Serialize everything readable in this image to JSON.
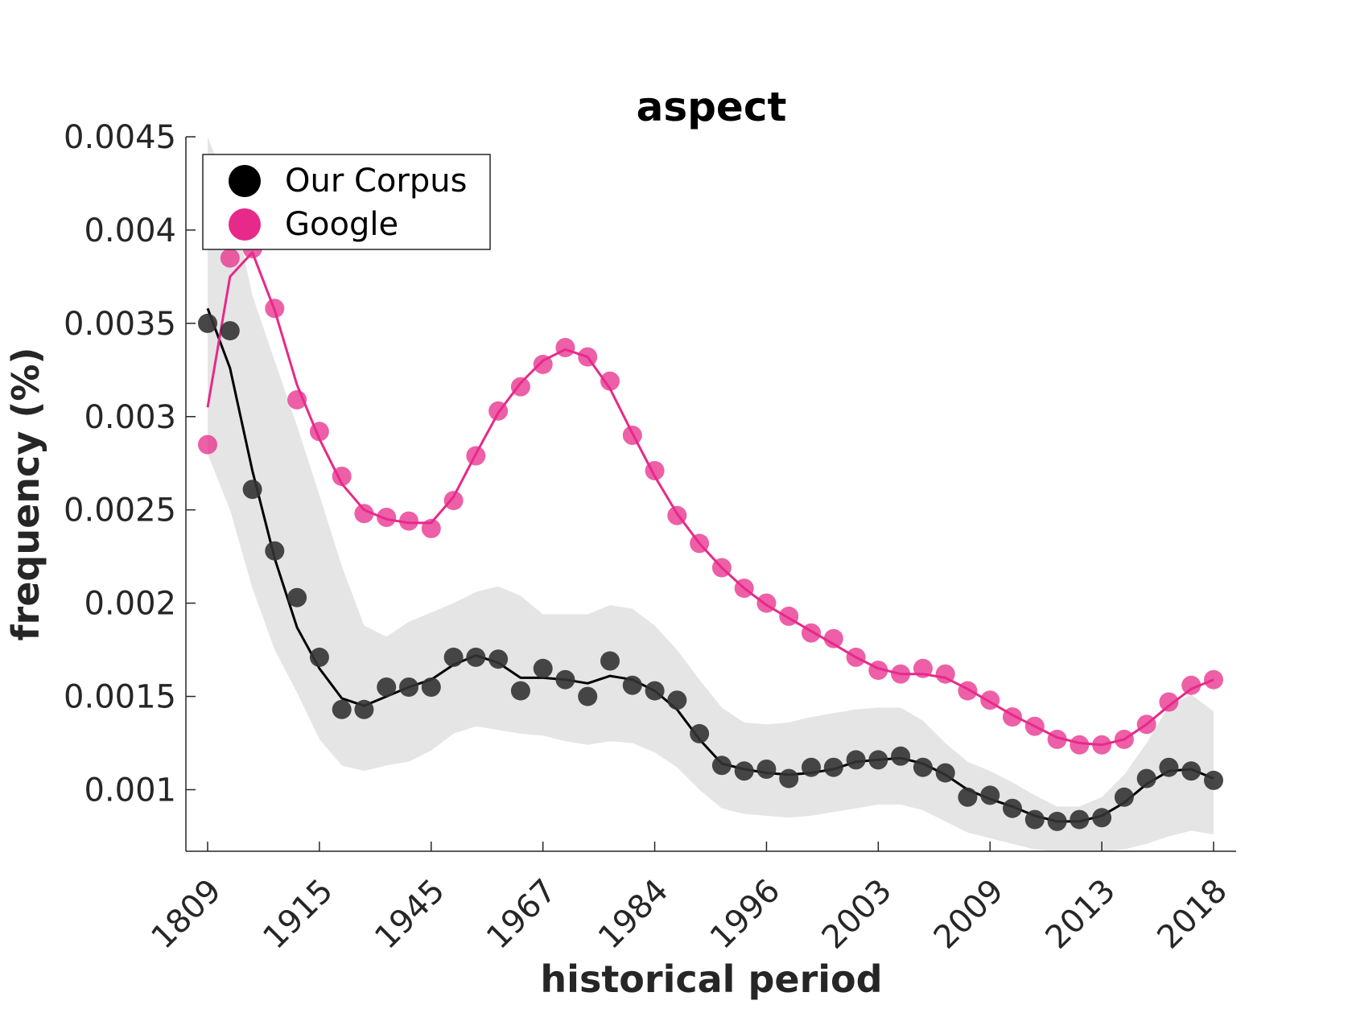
{
  "chart_data": {
    "type": "scatter",
    "title": "aspect",
    "xlabel": "historical period",
    "ylabel": "frequency (%)",
    "x_tick_labels": [
      "1809",
      "1915",
      "1945",
      "1967",
      "1984",
      "1996",
      "2003",
      "2009",
      "2013",
      "2018"
    ],
    "y_ticks": [
      0.001,
      0.0015,
      0.002,
      0.0025,
      0.003,
      0.0035,
      0.004,
      0.0045
    ],
    "y_tick_labels": [
      "0.001",
      "0.0015",
      "0.002",
      "0.0025",
      "0.003",
      "0.0035",
      "0.004",
      "0.0045"
    ],
    "ylim": [
      0.00067,
      0.0045
    ],
    "grid": false,
    "legend_position": "top-left",
    "series": [
      {
        "name": "Our Corpus",
        "color": "#333333",
        "line_color": "#000000",
        "points": [
          0.0035,
          0.00346,
          0.00261,
          0.00228,
          0.00203,
          0.00171,
          0.00143,
          0.00143,
          0.00155,
          0.00155,
          0.00155,
          0.00171,
          0.00171,
          0.0017,
          0.00153,
          0.00165,
          0.00159,
          0.0015,
          0.00169,
          0.00156,
          0.00153,
          0.00148,
          0.0013,
          0.00113,
          0.0011,
          0.00111,
          0.00106,
          0.00112,
          0.00112,
          0.00116,
          0.00116,
          0.00118,
          0.00112,
          0.00109,
          0.00096,
          0.00097,
          0.0009,
          0.00084,
          0.00083,
          0.00084,
          0.00085,
          0.00096,
          0.00106,
          0.00112,
          0.0011,
          0.00105
        ],
        "smooth": [
          0.00358,
          0.00326,
          0.00271,
          0.00224,
          0.00187,
          0.00165,
          0.00149,
          0.00145,
          0.0015,
          0.00155,
          0.00159,
          0.00167,
          0.00172,
          0.00168,
          0.0016,
          0.0016,
          0.00159,
          0.00157,
          0.00161,
          0.00159,
          0.00153,
          0.00143,
          0.00127,
          0.00114,
          0.00111,
          0.00109,
          0.00108,
          0.00109,
          0.00111,
          0.00115,
          0.00116,
          0.00117,
          0.00114,
          0.00108,
          0.001,
          0.00095,
          0.00091,
          0.00086,
          0.00083,
          0.00083,
          0.00086,
          0.00093,
          0.00103,
          0.0011,
          0.00111,
          0.00106
        ],
        "band_upper": [
          0.0045,
          0.0042,
          0.00365,
          0.0033,
          0.00295,
          0.00258,
          0.0022,
          0.00188,
          0.00182,
          0.0019,
          0.00195,
          0.002,
          0.00206,
          0.00209,
          0.00204,
          0.00194,
          0.00194,
          0.00194,
          0.00199,
          0.00197,
          0.00188,
          0.00175,
          0.00159,
          0.00144,
          0.00136,
          0.00135,
          0.00136,
          0.00139,
          0.00141,
          0.00143,
          0.00144,
          0.00144,
          0.00137,
          0.00125,
          0.00115,
          0.0011,
          0.00104,
          0.00097,
          0.00091,
          0.00091,
          0.00096,
          0.00108,
          0.00125,
          0.00145,
          0.00151,
          0.00142
        ],
        "band_lower": [
          0.0028,
          0.0025,
          0.00208,
          0.00175,
          0.00152,
          0.00127,
          0.00113,
          0.0011,
          0.00113,
          0.00115,
          0.00121,
          0.0013,
          0.00134,
          0.00132,
          0.0013,
          0.00129,
          0.00126,
          0.00124,
          0.00126,
          0.00125,
          0.0012,
          0.00112,
          0.001,
          0.0009,
          0.00087,
          0.00086,
          0.00085,
          0.00086,
          0.00088,
          0.0009,
          0.00092,
          0.00092,
          0.00089,
          0.00083,
          0.00077,
          0.00074,
          0.00071,
          0.00068,
          0.00067,
          0.00067,
          0.00067,
          0.00068,
          0.00071,
          0.00075,
          0.00078,
          0.00076
        ]
      },
      {
        "name": "Google",
        "color": "#e7298a",
        "line_color": "#e7298a",
        "points": [
          0.00285,
          0.00385,
          0.0039,
          0.00358,
          0.00309,
          0.00292,
          0.00268,
          0.00248,
          0.00246,
          0.00244,
          0.0024,
          0.00255,
          0.00279,
          0.00303,
          0.00316,
          0.00328,
          0.00337,
          0.00332,
          0.00319,
          0.0029,
          0.00271,
          0.00247,
          0.00232,
          0.00219,
          0.00208,
          0.002,
          0.00193,
          0.00184,
          0.00181,
          0.00171,
          0.00164,
          0.00162,
          0.00165,
          0.00162,
          0.00153,
          0.00148,
          0.00139,
          0.00134,
          0.00127,
          0.00124,
          0.00124,
          0.00127,
          0.00135,
          0.00147,
          0.00156,
          0.00159
        ],
        "smooth": [
          0.00305,
          0.00375,
          0.00388,
          0.00357,
          0.00317,
          0.00288,
          0.00264,
          0.0025,
          0.00245,
          0.00243,
          0.00243,
          0.00257,
          0.0028,
          0.00302,
          0.00318,
          0.0033,
          0.00336,
          0.00332,
          0.00315,
          0.00291,
          0.00268,
          0.00248,
          0.00232,
          0.00219,
          0.00208,
          0.00199,
          0.00192,
          0.00185,
          0.00178,
          0.00171,
          0.00165,
          0.00162,
          0.00162,
          0.0016,
          0.00154,
          0.00147,
          0.0014,
          0.00134,
          0.00128,
          0.00125,
          0.00124,
          0.00127,
          0.00135,
          0.00145,
          0.00154,
          0.00159
        ]
      }
    ]
  }
}
